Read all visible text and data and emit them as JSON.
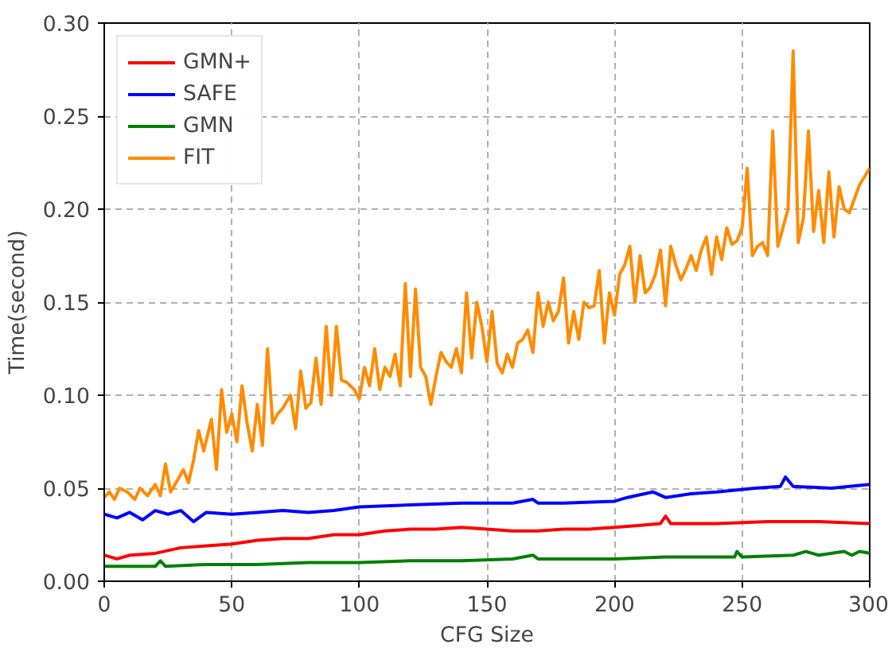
{
  "chart_data": {
    "type": "line",
    "xlabel": "CFG Size",
    "ylabel": "Time(second)",
    "xlim": [
      0,
      300
    ],
    "xticks": [
      0,
      50,
      100,
      150,
      200,
      250,
      300
    ],
    "ylim": [
      0,
      0.3
    ],
    "yticks": [
      {
        "value": 0,
        "label": "0.00"
      },
      {
        "value": 0.05,
        "label": "0.05"
      },
      {
        "value": 0.1,
        "label": "0.10"
      },
      {
        "value": 0.15,
        "label": "0.15"
      },
      {
        "value": 0.2,
        "label": "0.20"
      },
      {
        "value": 0.25,
        "label": "0.25"
      },
      {
        "value": 0.3,
        "label": "0.30"
      }
    ],
    "grid": true,
    "legend": "top left",
    "line_style": "solid",
    "marker": "none",
    "series": [
      {
        "name": "GMN+",
        "color": "#ff0000",
        "x": [
          0,
          5,
          10,
          20,
          30,
          40,
          50,
          60,
          70,
          80,
          90,
          100,
          110,
          120,
          130,
          140,
          150,
          160,
          170,
          180,
          190,
          200,
          210,
          218,
          220,
          222,
          240,
          260,
          280,
          300
        ],
        "values": [
          0.014,
          0.012,
          0.014,
          0.015,
          0.018,
          0.019,
          0.02,
          0.022,
          0.023,
          0.023,
          0.025,
          0.025,
          0.027,
          0.028,
          0.028,
          0.029,
          0.028,
          0.027,
          0.027,
          0.028,
          0.028,
          0.029,
          0.03,
          0.031,
          0.035,
          0.031,
          0.031,
          0.032,
          0.032,
          0.031
        ]
      },
      {
        "name": "SAFE",
        "color": "#0000ff",
        "x": [
          0,
          5,
          10,
          15,
          20,
          25,
          30,
          35,
          40,
          50,
          60,
          70,
          80,
          90,
          100,
          120,
          140,
          160,
          168,
          170,
          180,
          200,
          205,
          215,
          220,
          230,
          240,
          255,
          265,
          267,
          270,
          285,
          300
        ],
        "values": [
          0.036,
          0.034,
          0.037,
          0.033,
          0.038,
          0.036,
          0.038,
          0.032,
          0.037,
          0.036,
          0.037,
          0.038,
          0.037,
          0.038,
          0.04,
          0.041,
          0.042,
          0.042,
          0.044,
          0.042,
          0.042,
          0.043,
          0.045,
          0.048,
          0.045,
          0.047,
          0.048,
          0.05,
          0.051,
          0.056,
          0.051,
          0.05,
          0.052
        ]
      },
      {
        "name": "GMN",
        "color": "#008000",
        "x": [
          0,
          10,
          20,
          22,
          24,
          40,
          60,
          80,
          100,
          120,
          140,
          160,
          168,
          170,
          200,
          220,
          247,
          248,
          250,
          270,
          275,
          280,
          290,
          293,
          296,
          300
        ],
        "values": [
          0.008,
          0.008,
          0.008,
          0.011,
          0.008,
          0.009,
          0.009,
          0.01,
          0.01,
          0.011,
          0.011,
          0.012,
          0.014,
          0.012,
          0.012,
          0.013,
          0.013,
          0.016,
          0.013,
          0.014,
          0.016,
          0.014,
          0.016,
          0.014,
          0.016,
          0.015
        ]
      },
      {
        "name": "FIT",
        "color": "#ff8c00",
        "x": [
          0,
          2,
          4,
          6,
          9,
          12,
          14,
          17,
          20,
          22,
          24,
          26,
          29,
          31,
          33,
          35,
          37,
          39,
          42,
          44,
          46,
          48,
          50,
          52,
          54,
          56,
          58,
          60,
          62,
          64,
          66,
          68,
          70,
          73,
          75,
          77,
          79,
          81,
          83,
          85,
          87,
          89,
          91,
          93,
          95,
          98,
          100,
          102,
          104,
          106,
          108,
          110,
          112,
          114,
          116,
          118,
          120,
          122,
          124,
          126,
          128,
          130,
          132,
          134,
          136,
          138,
          140,
          142,
          144,
          146,
          148,
          150,
          152,
          154,
          156,
          158,
          160,
          162,
          164,
          166,
          168,
          170,
          172,
          174,
          176,
          178,
          180,
          182,
          184,
          186,
          188,
          190,
          192,
          194,
          196,
          198,
          200,
          202,
          204,
          206,
          208,
          210,
          212,
          214,
          216,
          218,
          220,
          222,
          224,
          226,
          228,
          230,
          232,
          234,
          236,
          238,
          240,
          242,
          244,
          246,
          248,
          250,
          252,
          254,
          256,
          258,
          260,
          262,
          264,
          266,
          268,
          270,
          272,
          274,
          276,
          278,
          280,
          282,
          284,
          286,
          288,
          290,
          292,
          296,
          300
        ],
        "values": [
          0.045,
          0.048,
          0.044,
          0.05,
          0.048,
          0.044,
          0.05,
          0.046,
          0.052,
          0.046,
          0.063,
          0.048,
          0.055,
          0.06,
          0.053,
          0.065,
          0.081,
          0.07,
          0.087,
          0.06,
          0.103,
          0.08,
          0.09,
          0.075,
          0.105,
          0.085,
          0.07,
          0.095,
          0.073,
          0.125,
          0.085,
          0.09,
          0.093,
          0.1,
          0.082,
          0.113,
          0.093,
          0.096,
          0.12,
          0.095,
          0.137,
          0.1,
          0.137,
          0.108,
          0.107,
          0.103,
          0.098,
          0.115,
          0.105,
          0.125,
          0.103,
          0.115,
          0.11,
          0.122,
          0.105,
          0.16,
          0.11,
          0.157,
          0.115,
          0.11,
          0.095,
          0.11,
          0.123,
          0.118,
          0.115,
          0.125,
          0.112,
          0.155,
          0.12,
          0.15,
          0.137,
          0.118,
          0.145,
          0.117,
          0.112,
          0.122,
          0.115,
          0.128,
          0.13,
          0.135,
          0.123,
          0.155,
          0.137,
          0.15,
          0.14,
          0.145,
          0.163,
          0.128,
          0.145,
          0.13,
          0.15,
          0.147,
          0.148,
          0.167,
          0.128,
          0.155,
          0.143,
          0.165,
          0.17,
          0.18,
          0.15,
          0.175,
          0.155,
          0.158,
          0.165,
          0.178,
          0.148,
          0.18,
          0.17,
          0.162,
          0.168,
          0.175,
          0.167,
          0.178,
          0.185,
          0.165,
          0.185,
          0.173,
          0.19,
          0.181,
          0.183,
          0.19,
          0.222,
          0.175,
          0.18,
          0.182,
          0.175,
          0.242,
          0.18,
          0.19,
          0.2,
          0.285,
          0.182,
          0.195,
          0.242,
          0.188,
          0.21,
          0.182,
          0.22,
          0.185,
          0.212,
          0.2,
          0.198,
          0.213,
          0.222
        ]
      }
    ]
  }
}
